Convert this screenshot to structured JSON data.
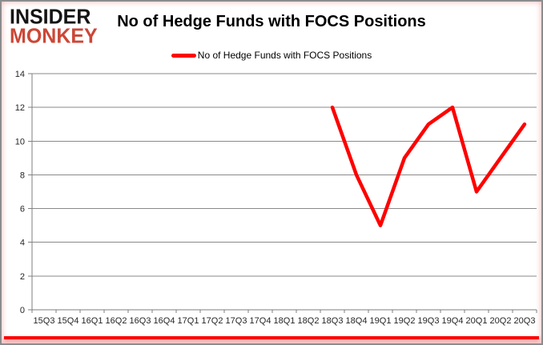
{
  "logo": {
    "line1": "INSIDER",
    "line2": "MONKEY",
    "color": "#cc4736"
  },
  "header": {
    "title": "No of Hedge Funds with FOCS Positions"
  },
  "legend": {
    "label": "No of Hedge Funds with FOCS Positions",
    "line_color": "#fe0000"
  },
  "chart_data": {
    "type": "line",
    "title": "No of Hedge Funds with FOCS Positions",
    "categories": [
      "15Q3",
      "15Q4",
      "16Q1",
      "16Q2",
      "16Q3",
      "16Q4",
      "17Q1",
      "17Q2",
      "17Q3",
      "17Q4",
      "18Q1",
      "18Q2",
      "18Q3",
      "18Q4",
      "19Q1",
      "19Q2",
      "19Q3",
      "19Q4",
      "20Q1",
      "20Q2",
      "20Q3"
    ],
    "series": [
      {
        "name": "No of Hedge Funds with FOCS Positions",
        "color": "#fe0000",
        "values": [
          null,
          null,
          null,
          null,
          null,
          null,
          null,
          null,
          null,
          null,
          null,
          null,
          12,
          8,
          5,
          9,
          11,
          12,
          7,
          9,
          11
        ]
      }
    ],
    "xlabel": "",
    "ylabel": "",
    "ylim": [
      0,
      14
    ],
    "ytick_step": 2,
    "grid": true,
    "legend_position": "top-center",
    "grid_color": "#8a8a8a",
    "axis_color": "#7f7f7f",
    "tick_label_color": "#262626"
  },
  "frame": {
    "border_color": "#8c8c8c",
    "bottom_band_color": "#fe0000"
  }
}
